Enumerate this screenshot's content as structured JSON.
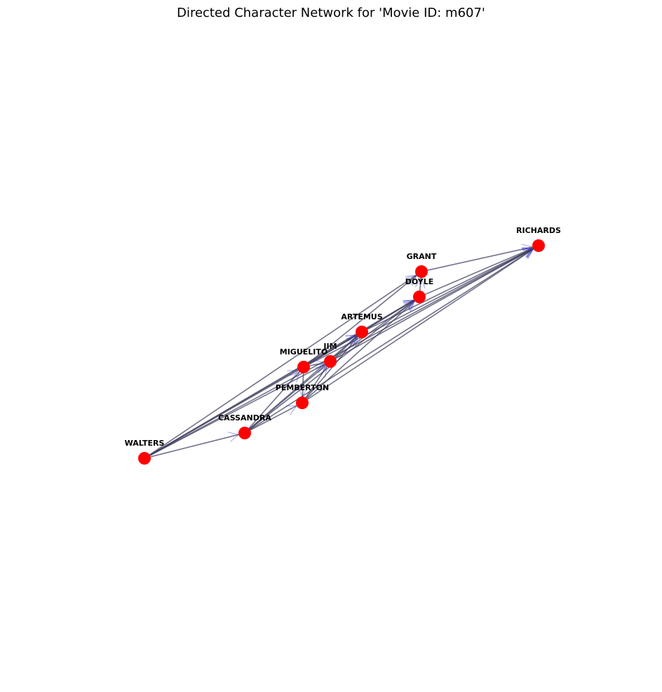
{
  "title": "Directed Character Network for 'Movie ID: m607'",
  "colors": {
    "node": "#ff0000",
    "edge": "#3c3c5c",
    "arrow": "#3333cc",
    "label": "#000000"
  },
  "network": {
    "nodes": [
      {
        "id": "RICHARDS",
        "label": "RICHARDS"
      },
      {
        "id": "GRANT",
        "label": "GRANT"
      },
      {
        "id": "DOYLE",
        "label": "DOYLE"
      },
      {
        "id": "ARTEMUS",
        "label": "ARTEMUS"
      },
      {
        "id": "JIM",
        "label": "JIM"
      },
      {
        "id": "MIGUELITO",
        "label": "MIGUELITO"
      },
      {
        "id": "PEMBERTON",
        "label": "PEMBERTON"
      },
      {
        "id": "CASSANDRA",
        "label": "CASSANDRA"
      },
      {
        "id": "WALTERS",
        "label": "WALTERS"
      }
    ],
    "edges": [
      [
        "GRANT",
        "RICHARDS"
      ],
      [
        "DOYLE",
        "RICHARDS"
      ],
      [
        "ARTEMUS",
        "RICHARDS"
      ],
      [
        "JIM",
        "RICHARDS"
      ],
      [
        "MIGUELITO",
        "RICHARDS"
      ],
      [
        "PEMBERTON",
        "RICHARDS"
      ],
      [
        "CASSANDRA",
        "RICHARDS"
      ],
      [
        "WALTERS",
        "RICHARDS"
      ],
      [
        "WALTERS",
        "GRANT"
      ],
      [
        "WALTERS",
        "DOYLE"
      ],
      [
        "WALTERS",
        "ARTEMUS"
      ],
      [
        "WALTERS",
        "JIM"
      ],
      [
        "WALTERS",
        "MIGUELITO"
      ],
      [
        "WALTERS",
        "CASSANDRA"
      ],
      [
        "MIGUELITO",
        "GRANT"
      ],
      [
        "MIGUELITO",
        "DOYLE"
      ],
      [
        "MIGUELITO",
        "ARTEMUS"
      ],
      [
        "MIGUELITO",
        "JIM"
      ],
      [
        "MIGUELITO",
        "PEMBERTON"
      ],
      [
        "CASSANDRA",
        "DOYLE"
      ],
      [
        "CASSANDRA",
        "ARTEMUS"
      ],
      [
        "CASSANDRA",
        "JIM"
      ],
      [
        "CASSANDRA",
        "MIGUELITO"
      ],
      [
        "CASSANDRA",
        "PEMBERTON"
      ],
      [
        "PEMBERTON",
        "JIM"
      ],
      [
        "PEMBERTON",
        "ARTEMUS"
      ],
      [
        "PEMBERTON",
        "DOYLE"
      ],
      [
        "JIM",
        "ARTEMUS"
      ],
      [
        "JIM",
        "DOYLE"
      ],
      [
        "ARTEMUS",
        "DOYLE"
      ],
      [
        "DOYLE",
        "GRANT"
      ]
    ]
  }
}
